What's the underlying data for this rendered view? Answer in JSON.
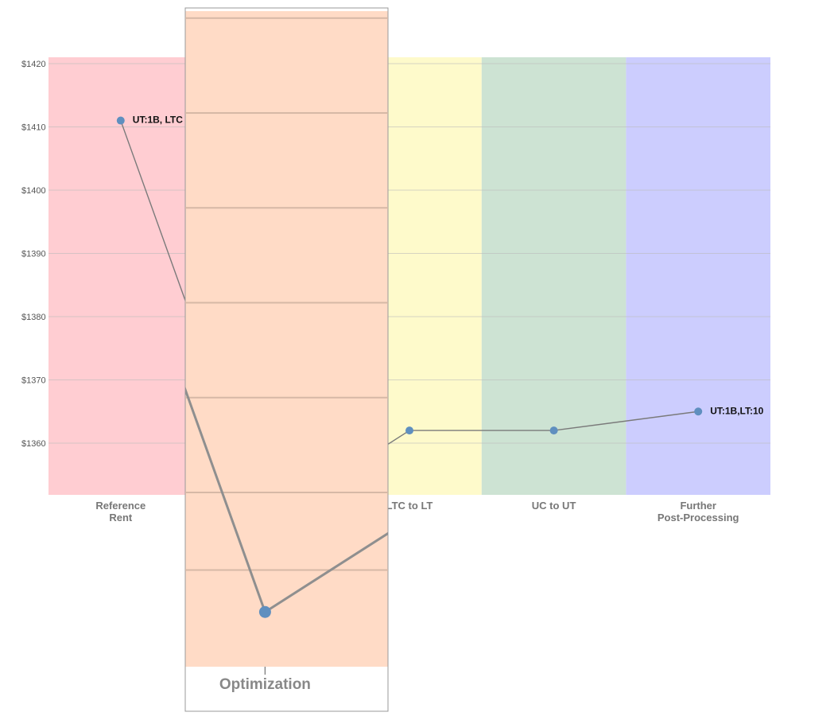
{
  "chart_data": {
    "type": "line",
    "title": "",
    "xlabel": "",
    "ylabel": "",
    "ylim": [
      1352,
      1421
    ],
    "y_ticks": [
      1360,
      1370,
      1380,
      1390,
      1400,
      1410,
      1420
    ],
    "y_tick_labels": [
      "$1360",
      "$1370",
      "$1380",
      "$1390",
      "$1400",
      "$1410",
      "$1420"
    ],
    "grid": true,
    "categories": [
      {
        "lines": [
          "Reference",
          "Rent"
        ],
        "color": "#ffcdd2"
      },
      {
        "lines": [
          "Optimization"
        ],
        "color": "#ffdbc6"
      },
      {
        "lines": [
          "LTC to LT"
        ],
        "color": "#fefacb"
      },
      {
        "lines": [
          "UC to UT"
        ],
        "color": "#cde3d3"
      },
      {
        "lines": [
          "Further",
          "Post-Processing"
        ],
        "color": "#cccdfe"
      }
    ],
    "series": [
      {
        "values": [
          1411,
          1347.4,
          1362,
          1362,
          1365
        ],
        "point_labels": [
          "UT:1B, LTC",
          "",
          "",
          "",
          "UT:1B,LT:10"
        ]
      }
    ],
    "zoom_lens": {
      "category_index": 1,
      "label": "Optimization",
      "fill": "#ffdbc6"
    }
  }
}
